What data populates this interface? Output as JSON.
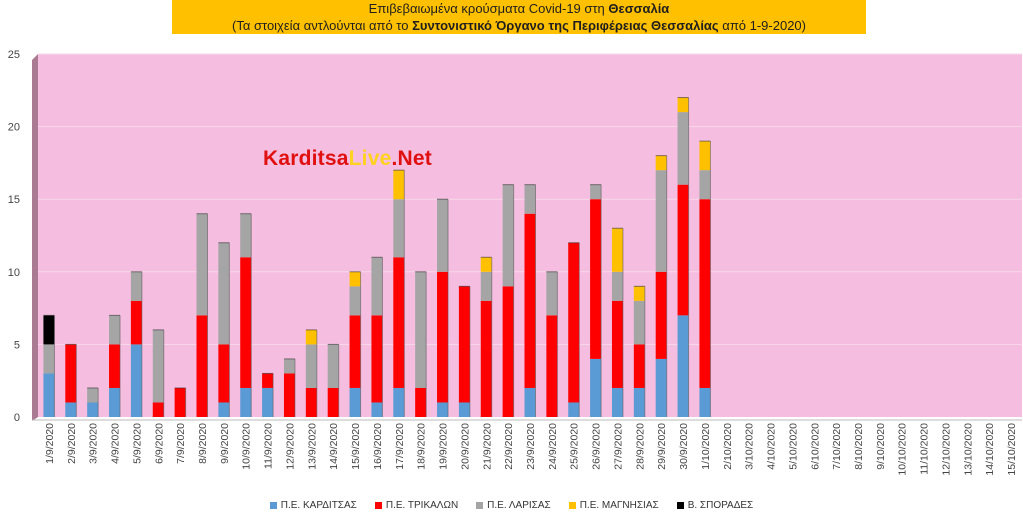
{
  "title": {
    "line1_prefix": "Επιβεβαιωμένα κρούσματα Covid-19 στη ",
    "line1_bold": "Θεσσαλία",
    "line2_prefix": "(Τα στοιχεία αντλούνται από το ",
    "line2_bold": "Συντονιστικό Όργανο της Περιφέρειας Θεσσαλίας",
    "line2_suffix": " από 1-9-2020)"
  },
  "watermark": {
    "part1": "Karditsa",
    "part2": "Live",
    "part3": ".Net"
  },
  "colors": {
    "plot_background": "#f5bddf",
    "wall_side": "#a97a92",
    "gridline": "#f8d9ea"
  },
  "chart_data": {
    "type": "bar",
    "stacked": true,
    "ylim": [
      0,
      25
    ],
    "yticks": [
      0,
      5,
      10,
      15,
      20,
      25
    ],
    "grid": true,
    "legend_position": "bottom",
    "categories": [
      "1/9/2020",
      "2/9/2020",
      "3/9/2020",
      "4/9/2020",
      "5/9/2020",
      "6/9/2020",
      "7/9/2020",
      "8/9/2020",
      "9/9/2020",
      "10/9/2020",
      "11/9/2020",
      "12/9/2020",
      "13/9/2020",
      "14/9/2020",
      "15/9/2020",
      "16/9/2020",
      "17/9/2020",
      "18/9/2020",
      "19/9/2020",
      "20/9/2020",
      "21/9/2020",
      "22/9/2020",
      "23/9/2020",
      "24/9/2020",
      "25/9/2020",
      "26/9/2020",
      "27/9/2020",
      "28/9/2020",
      "29/9/2020",
      "30/9/2020",
      "1/10/2020",
      "2/10/2020",
      "3/10/2020",
      "4/10/2020",
      "5/10/2020",
      "6/10/2020",
      "7/10/2020",
      "8/10/2020",
      "9/10/2020",
      "10/10/2020",
      "11/10/2020",
      "12/10/2020",
      "13/10/2020",
      "14/10/2020",
      "15/10/2020"
    ],
    "series": [
      {
        "name": "Π.Ε. ΚΑΡΔΙΤΣΑΣ",
        "color": "#5b9bd5",
        "values": [
          3,
          1,
          1,
          2,
          5,
          0,
          0,
          0,
          1,
          2,
          2,
          0,
          0,
          0,
          2,
          1,
          2,
          0,
          1,
          1,
          0,
          0,
          2,
          0,
          1,
          4,
          2,
          2,
          4,
          7,
          2,
          0,
          0,
          0,
          0,
          0,
          0,
          0,
          0,
          0,
          0,
          0,
          0,
          0,
          0
        ]
      },
      {
        "name": "Π.Ε. ΤΡΙΚΑΛΩΝ",
        "color": "#ff0000",
        "values": [
          0,
          4,
          0,
          3,
          3,
          1,
          2,
          7,
          4,
          9,
          1,
          3,
          2,
          2,
          5,
          6,
          9,
          2,
          9,
          8,
          8,
          9,
          12,
          7,
          11,
          11,
          6,
          3,
          6,
          9,
          13,
          0,
          0,
          0,
          0,
          0,
          0,
          0,
          0,
          0,
          0,
          0,
          0,
          0,
          0
        ]
      },
      {
        "name": "Π.Ε. ΛΑΡΙΣΑΣ",
        "color": "#a5a5a5",
        "values": [
          2,
          0,
          1,
          2,
          2,
          5,
          0,
          7,
          7,
          3,
          0,
          1,
          3,
          3,
          2,
          4,
          4,
          8,
          5,
          0,
          2,
          7,
          2,
          3,
          0,
          1,
          2,
          3,
          7,
          5,
          2,
          0,
          0,
          0,
          0,
          0,
          0,
          0,
          0,
          0,
          0,
          0,
          0,
          0,
          0
        ]
      },
      {
        "name": "Π.Ε. ΜΑΓΝΗΣΙΑΣ",
        "color": "#ffc000",
        "values": [
          0,
          0,
          0,
          0,
          0,
          0,
          0,
          0,
          0,
          0,
          0,
          0,
          1,
          0,
          1,
          0,
          2,
          0,
          0,
          0,
          1,
          0,
          0,
          0,
          0,
          0,
          3,
          1,
          1,
          1,
          2,
          0,
          0,
          0,
          0,
          0,
          0,
          0,
          0,
          0,
          0,
          0,
          0,
          0,
          0
        ]
      },
      {
        "name": "Β. ΣΠΟΡΑΔΕΣ",
        "color": "#000000",
        "values": [
          2,
          0,
          0,
          0,
          0,
          0,
          0,
          0,
          0,
          0,
          0,
          0,
          0,
          0,
          0,
          0,
          0,
          0,
          0,
          0,
          0,
          0,
          0,
          0,
          0,
          0,
          0,
          0,
          0,
          0,
          0,
          0,
          0,
          0,
          0,
          0,
          0,
          0,
          0,
          0,
          0,
          0,
          0,
          0,
          0
        ]
      }
    ]
  }
}
